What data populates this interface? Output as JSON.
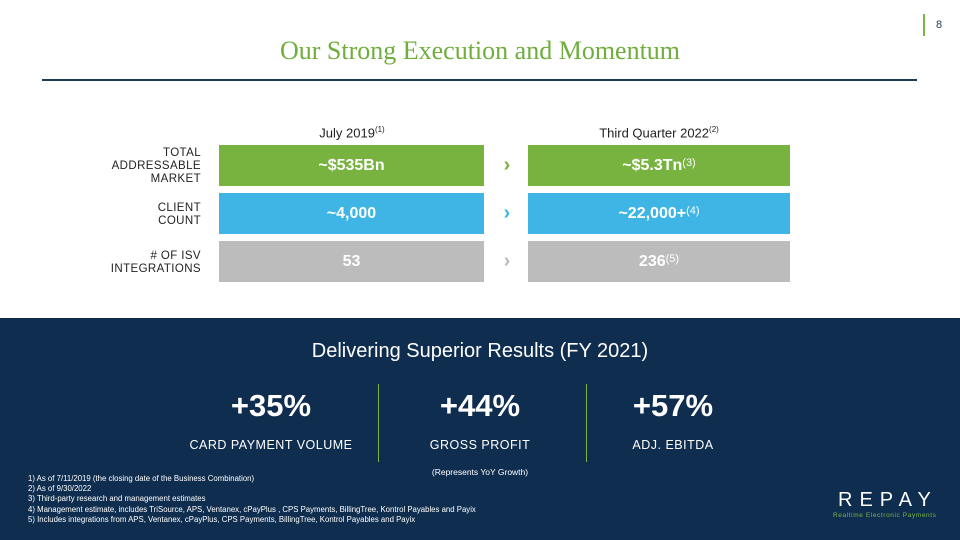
{
  "page_number": "8",
  "title": "Our Strong Execution and Momentum",
  "columns": {
    "left": {
      "label": "July 2019",
      "note": "(1)"
    },
    "right": {
      "label": "Third Quarter 2022",
      "note": "(2)"
    }
  },
  "arrow_glyph": "›",
  "rows": [
    {
      "label_lines": [
        "TOTAL",
        "ADDRESSABLE",
        "MARKET"
      ],
      "left": "~$535Bn",
      "right": "~$5.3Tn",
      "right_note": "(3)",
      "color": "#77b33e"
    },
    {
      "label_lines": [
        "CLIENT",
        "COUNT"
      ],
      "left": "~4,000",
      "right": "~22,000+",
      "right_note": "(4)",
      "color": "#3eb5e5"
    },
    {
      "label_lines": [
        "# OF ISV",
        "INTEGRATIONS"
      ],
      "left": "53",
      "right": "236",
      "right_note": "(5)",
      "color": "#bcbcbc"
    }
  ],
  "results": {
    "title": "Delivering Superior Results (FY 2021)",
    "metrics": [
      {
        "value": "+35%",
        "label": "CARD PAYMENT VOLUME"
      },
      {
        "value": "+44%",
        "label": "GROSS PROFIT"
      },
      {
        "value": "+57%",
        "label": "ADJ. EBITDA"
      }
    ],
    "note": "(Represents YoY Growth)"
  },
  "footnotes": [
    "1)  As of 7/11/2019 (the closing date of the Business Combination)",
    "2)  As of 9/30/2022",
    "3)  Third-party research and management estimates",
    "4)  Management estimate, includes TriSource, APS, Ventanex, cPayPlus , CPS Payments, BillingTree, Kontrol Payables and Payix",
    "5)  Includes integrations from APS, Ventanex, cPayPlus, CPS Payments, BillingTree, Kontrol Payables and Payix"
  ],
  "logo": {
    "text": "REPAY",
    "tagline": "Realtime Electronic Payments"
  },
  "colors": {
    "green": "#77b33e",
    "blue": "#3eb5e5",
    "gray": "#bcbcbc",
    "navy": "#0f2d4e",
    "title_green": "#6fae3c"
  }
}
